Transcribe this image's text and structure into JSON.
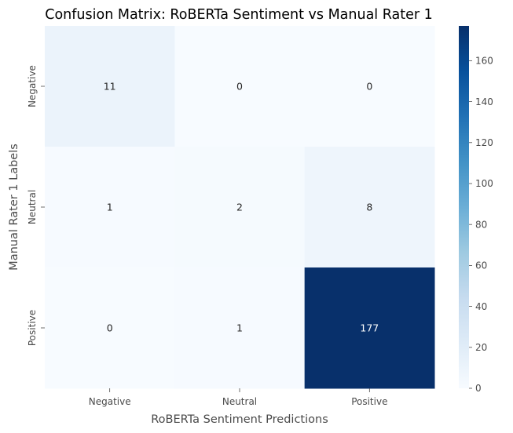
{
  "chart_data": {
    "type": "heatmap",
    "title": "Confusion Matrix: RoBERTa Sentiment vs Manual Rater 1",
    "xlabel": "RoBERTa Sentiment Predictions",
    "ylabel": "Manual Rater 1 Labels",
    "x_categories": [
      "Negative",
      "Neutral",
      "Positive"
    ],
    "y_categories": [
      "Negative",
      "Neutral",
      "Positive"
    ],
    "values": [
      [
        11,
        0,
        0
      ],
      [
        1,
        2,
        8
      ],
      [
        0,
        1,
        177
      ]
    ],
    "colorbar": {
      "min": 0,
      "max": 177,
      "ticks": [
        0,
        20,
        40,
        60,
        80,
        100,
        120,
        140,
        160
      ],
      "colormap": "Blues"
    },
    "grid": false
  }
}
